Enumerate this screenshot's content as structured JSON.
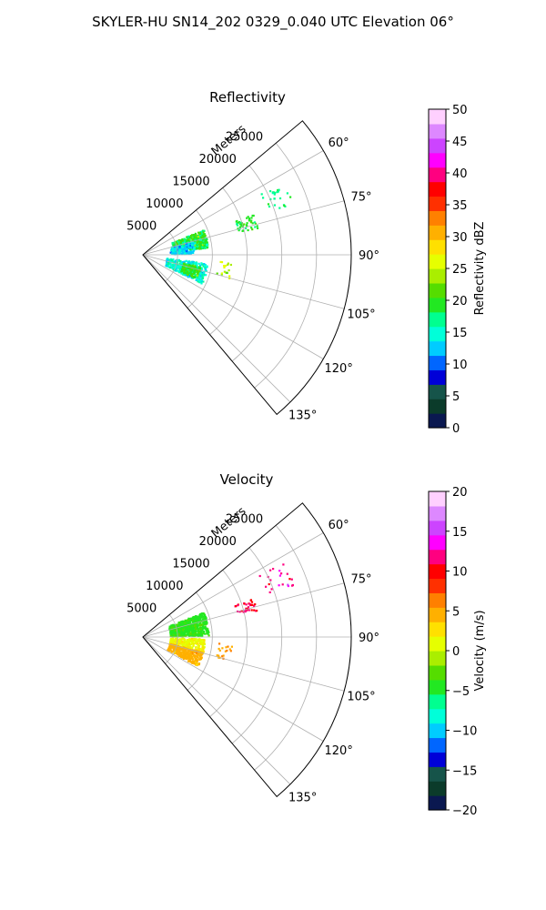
{
  "figure": {
    "suptitle": "SKYLER-HU  SN14_202  0329_0.040 UTC Elevation 06°"
  },
  "chart_data": [
    {
      "type": "polar-sector-scatter",
      "title": "Reflectivity",
      "range_label": "Meters",
      "theta_range_deg": [
        50,
        140
      ],
      "r_max": 30000,
      "r_ticks": [
        5000,
        10000,
        15000,
        20000,
        25000
      ],
      "r_tick_labels": [
        "5000",
        "10000",
        "15000",
        "20000",
        "25000"
      ],
      "theta_ticks": [
        60,
        75,
        90,
        105,
        120,
        135
      ],
      "theta_tick_labels": [
        "60°",
        "75°",
        "90°",
        "105°",
        "120°",
        "135°"
      ],
      "grid": true,
      "colorbar": {
        "label": "Reflectivity dBZ",
        "min": 0,
        "max": 50,
        "ticks": [
          0,
          5,
          10,
          15,
          20,
          25,
          30,
          35,
          40,
          45,
          50
        ],
        "tick_labels": [
          "0",
          "5",
          "10",
          "15",
          "20",
          "25",
          "30",
          "35",
          "40",
          "45",
          "50"
        ],
        "colormap": [
          "#0a1850",
          "#0b3b2a",
          "#16544a",
          "#0000d8",
          "#0066ff",
          "#00ccff",
          "#00ffd9",
          "#00ff90",
          "#22e822",
          "#55dd00",
          "#aaee00",
          "#e6ff00",
          "#ffe000",
          "#ffb000",
          "#ff8000",
          "#ff3000",
          "#ff0000",
          "#ff0080",
          "#ff00ff",
          "#cc44ff",
          "#dd88ff",
          "#ffd0ff"
        ]
      },
      "clusters": [
        {
          "theta": [
            68,
            84
          ],
          "r": [
            4500,
            9500
          ],
          "value": 19,
          "spread": 6,
          "density": 520
        },
        {
          "theta": [
            75,
            89
          ],
          "r": [
            4000,
            7500
          ],
          "value": 13,
          "spread": 4,
          "density": 200
        },
        {
          "theta": [
            98,
            116
          ],
          "r": [
            3500,
            9500
          ],
          "value": 15,
          "spread": 5,
          "density": 380
        },
        {
          "theta": [
            102,
            114
          ],
          "r": [
            6000,
            8500
          ],
          "value": 20,
          "spread": 4,
          "density": 160
        },
        {
          "theta": [
            70,
            77
          ],
          "r": [
            14000,
            17000
          ],
          "value": 19,
          "spread": 3,
          "density": 45
        },
        {
          "theta": [
            62,
            72
          ],
          "r": [
            19000,
            23000
          ],
          "value": 18,
          "spread": 3,
          "density": 25
        },
        {
          "theta": [
            95,
            106
          ],
          "r": [
            11000,
            13000
          ],
          "value": 24,
          "spread": 4,
          "density": 18
        }
      ]
    },
    {
      "type": "polar-sector-scatter",
      "title": "Velocity",
      "range_label": "Meters",
      "theta_range_deg": [
        50,
        140
      ],
      "r_max": 30000,
      "r_ticks": [
        5000,
        10000,
        15000,
        20000,
        25000
      ],
      "r_tick_labels": [
        "5000",
        "10000",
        "15000",
        "20000",
        "25000"
      ],
      "theta_ticks": [
        60,
        75,
        90,
        105,
        120,
        135
      ],
      "theta_tick_labels": [
        "60°",
        "75°",
        "90°",
        "105°",
        "120°",
        "135°"
      ],
      "grid": true,
      "colorbar": {
        "label": "Velocity (m/s)",
        "min": -20,
        "max": 20,
        "ticks": [
          -20,
          -15,
          -10,
          -5,
          0,
          5,
          10,
          15,
          20
        ],
        "tick_labels": [
          "−20",
          "−15",
          "−10",
          "−5",
          "0",
          "5",
          "10",
          "15",
          "20"
        ],
        "colormap": [
          "#0a1850",
          "#0b3b2a",
          "#16544a",
          "#0000d8",
          "#0066ff",
          "#00ccff",
          "#00ffd9",
          "#00ff90",
          "#22e822",
          "#55dd00",
          "#aaee00",
          "#e6ff00",
          "#ffe000",
          "#ffb000",
          "#ff8000",
          "#ff3000",
          "#ff0000",
          "#ff0080",
          "#ff00ff",
          "#cc44ff",
          "#dd88ff",
          "#ffd0ff"
        ]
      },
      "clusters": [
        {
          "theta": [
            68,
            89
          ],
          "r": [
            4000,
            9500
          ],
          "value": -4,
          "spread": 1.5,
          "density": 650
        },
        {
          "theta": [
            92,
            106
          ],
          "r": [
            4000,
            9000
          ],
          "value": 1.5,
          "spread": 1.5,
          "density": 260
        },
        {
          "theta": [
            104,
            118
          ],
          "r": [
            4000,
            9000
          ],
          "value": 4.5,
          "spread": 1.5,
          "density": 300
        },
        {
          "theta": [
            71,
            77
          ],
          "r": [
            14000,
            17000
          ],
          "value": 11,
          "spread": 1.5,
          "density": 35
        },
        {
          "theta": [
            62,
            72
          ],
          "r": [
            19000,
            23000
          ],
          "value": 12,
          "spread": 3,
          "density": 22
        },
        {
          "theta": [
            95,
            106
          ],
          "r": [
            11000,
            13000
          ],
          "value": 5,
          "spread": 2,
          "density": 18
        }
      ]
    }
  ]
}
